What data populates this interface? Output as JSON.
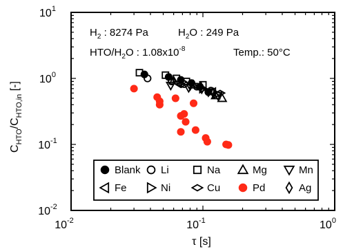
{
  "chart_data": {
    "type": "scatter",
    "x_scale": "log",
    "y_scale": "log",
    "xlim": [
      0.01,
      1
    ],
    "ylim": [
      0.01,
      10
    ],
    "xlabel": {
      "base": "τ",
      "unit": " [s]"
    },
    "ylabel": {
      "parts": [
        {
          "t": "C",
          "sub": false
        },
        {
          "t": "HTO",
          "sub": true
        },
        {
          "t": "/C",
          "sub": false
        },
        {
          "t": "HTO,in",
          "sub": true
        },
        {
          "t": " [-]",
          "sub": false
        }
      ]
    },
    "x_ticks": [
      {
        "value": 0.01,
        "base": "10",
        "exp": "-2"
      },
      {
        "value": 0.1,
        "base": "10",
        "exp": "-1"
      },
      {
        "value": 1,
        "base": "10",
        "exp": "0"
      }
    ],
    "y_ticks": [
      {
        "value": 0.01,
        "base": "10",
        "exp": "-2"
      },
      {
        "value": 0.1,
        "base": "10",
        "exp": "-1"
      },
      {
        "value": 1,
        "base": "10",
        "exp": "0"
      },
      {
        "value": 10,
        "base": "10",
        "exp": "1"
      }
    ],
    "annotations": {
      "h2": {
        "pre": "H",
        "sub": "2",
        "post": " : 8274 Pa"
      },
      "h2o": {
        "pre": "H",
        "sub": "2",
        "post": "O : 249 Pa"
      },
      "hto": {
        "pre": "HTO/H",
        "sub": "2",
        "mid": "O : 1.08x10",
        "sup": "-8"
      },
      "temp": "Temp.: 50°C"
    },
    "legend_position": "bottom",
    "series": [
      {
        "name": "Blank",
        "marker": "circle-filled",
        "color": "#000000",
        "points": [
          [
            0.036,
            1.15
          ],
          [
            0.055,
            1.05
          ],
          [
            0.068,
            0.95
          ],
          [
            0.082,
            0.85
          ],
          [
            0.095,
            0.75
          ],
          [
            0.11,
            0.62
          ]
        ]
      },
      {
        "name": "Li",
        "marker": "circle-open",
        "color": "#000000",
        "points": [
          [
            0.038,
            1.0
          ],
          [
            0.058,
            0.9
          ],
          [
            0.072,
            0.82
          ],
          [
            0.09,
            0.75
          ],
          [
            0.115,
            0.65
          ]
        ]
      },
      {
        "name": "Na",
        "marker": "square-open",
        "color": "#000000",
        "points": [
          [
            0.033,
            1.22
          ],
          [
            0.052,
            1.12
          ],
          [
            0.063,
            1.0
          ],
          [
            0.075,
            0.9
          ],
          [
            0.1,
            0.8
          ]
        ]
      },
      {
        "name": "Mg",
        "marker": "triangle-up-open",
        "color": "#000000",
        "points": [
          [
            0.06,
            0.92
          ],
          [
            0.085,
            0.8
          ],
          [
            0.125,
            0.55
          ],
          [
            0.14,
            0.5
          ]
        ]
      },
      {
        "name": "Mn",
        "marker": "triangle-down-open",
        "color": "#000000",
        "points": [
          [
            0.057,
            0.78
          ],
          [
            0.078,
            0.72
          ],
          [
            0.11,
            0.62
          ],
          [
            0.13,
            0.55
          ]
        ]
      },
      {
        "name": "Fe",
        "marker": "triangle-left-open",
        "color": "#000000",
        "points": [
          [
            0.065,
            0.85
          ],
          [
            0.092,
            0.75
          ],
          [
            0.118,
            0.62
          ]
        ]
      },
      {
        "name": "Ni",
        "marker": "triangle-right-open",
        "color": "#000000",
        "points": [
          [
            0.07,
            0.88
          ],
          [
            0.1,
            0.7
          ],
          [
            0.128,
            0.58
          ]
        ]
      },
      {
        "name": "Cu",
        "marker": "diamond-wide-open",
        "color": "#000000",
        "points": [
          [
            0.068,
            0.8
          ],
          [
            0.095,
            0.72
          ],
          [
            0.135,
            0.6
          ]
        ]
      },
      {
        "name": "Pd",
        "marker": "circle-filled",
        "color": "#ff2a17",
        "points": [
          [
            0.03,
            0.7
          ],
          [
            0.045,
            0.52
          ],
          [
            0.047,
            0.45
          ],
          [
            0.047,
            0.4
          ],
          [
            0.062,
            0.5
          ],
          [
            0.068,
            0.27
          ],
          [
            0.072,
            0.29
          ],
          [
            0.074,
            0.22
          ],
          [
            0.068,
            0.155
          ],
          [
            0.085,
            0.42
          ],
          [
            0.088,
            0.165
          ],
          [
            0.105,
            0.125
          ],
          [
            0.108,
            0.11
          ],
          [
            0.15,
            0.1
          ],
          [
            0.156,
            0.098
          ]
        ]
      },
      {
        "name": "Ag",
        "marker": "diamond-tall-open",
        "color": "#000000",
        "points": [
          [
            0.08,
            0.78
          ],
          [
            0.098,
            0.7
          ],
          [
            0.12,
            0.6
          ]
        ]
      }
    ]
  }
}
